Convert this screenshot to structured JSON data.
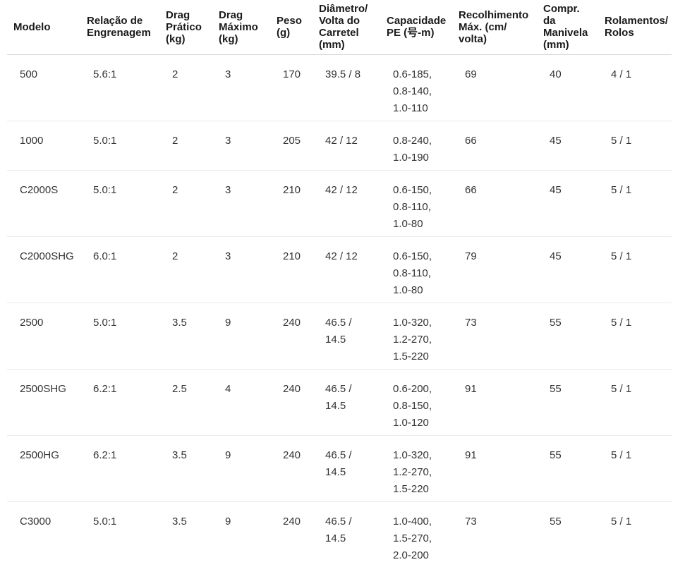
{
  "table": {
    "accent_colors": {
      "header_text": "#1a1a1a",
      "body_text": "#333333",
      "header_rule": "#d6d6d6",
      "row_rule": "#eaeaea",
      "background": "#ffffff"
    },
    "column_keys": [
      "modelo",
      "relacao-engrenagem",
      "drag-pratico",
      "drag-maximo",
      "peso",
      "diametro-volta-carretel",
      "capacidade-pe",
      "recolhimento-max",
      "compr-manivela",
      "rolamentos-rolos"
    ],
    "columns": [
      "Modelo",
      "Relação de\nEngrenagem",
      "Drag\nPrático\n(kg)",
      "Drag\nMáximo\n(kg)",
      "Peso\n(g)",
      "Diâmetro/\nVolta do\nCarretel\n(mm)",
      "Capacidade\nPE (号-m)",
      "Recolhimento\nMáx. (cm/\nvolta)",
      "Compr.\nda\nManivela\n(mm)",
      "Rolamentos/\nRolos"
    ],
    "rows": [
      {
        "cells": [
          "500",
          "5.6:1",
          "2",
          "3",
          "170",
          "39.5 / 8",
          "0.6-185,\n0.8-140,\n1.0-110",
          "69",
          "40",
          "4 / 1"
        ]
      },
      {
        "cells": [
          "1000",
          "5.0:1",
          "2",
          "3",
          "205",
          "42 / 12",
          "0.8-240,\n1.0-190",
          "66",
          "45",
          "5 / 1"
        ]
      },
      {
        "cells": [
          "C2000S",
          "5.0:1",
          "2",
          "3",
          "210",
          "42 / 12",
          "0.6-150,\n0.8-110,\n1.0-80",
          "66",
          "45",
          "5 / 1"
        ]
      },
      {
        "cells": [
          "C2000SHG",
          "6.0:1",
          "2",
          "3",
          "210",
          "42 / 12",
          "0.6-150,\n0.8-110,\n1.0-80",
          "79",
          "45",
          "5 / 1"
        ]
      },
      {
        "cells": [
          "2500",
          "5.0:1",
          "3.5",
          "9",
          "240",
          "46.5 /\n14.5",
          "1.0-320,\n1.2-270,\n1.5-220",
          "73",
          "55",
          "5 / 1"
        ]
      },
      {
        "cells": [
          "2500SHG",
          "6.2:1",
          "2.5",
          "4",
          "240",
          "46.5 /\n14.5",
          "0.6-200,\n0.8-150,\n1.0-120",
          "91",
          "55",
          "5 / 1"
        ]
      },
      {
        "cells": [
          "2500HG",
          "6.2:1",
          "3.5",
          "9",
          "240",
          "46.5 /\n14.5",
          "1.0-320,\n1.2-270,\n1.5-220",
          "91",
          "55",
          "5 / 1"
        ]
      },
      {
        "cells": [
          "C3000",
          "5.0:1",
          "3.5",
          "9",
          "240",
          "46.5 /\n14.5",
          "1.0-400,\n1.5-270,\n2.0-200",
          "73",
          "55",
          "5 / 1"
        ]
      }
    ]
  }
}
